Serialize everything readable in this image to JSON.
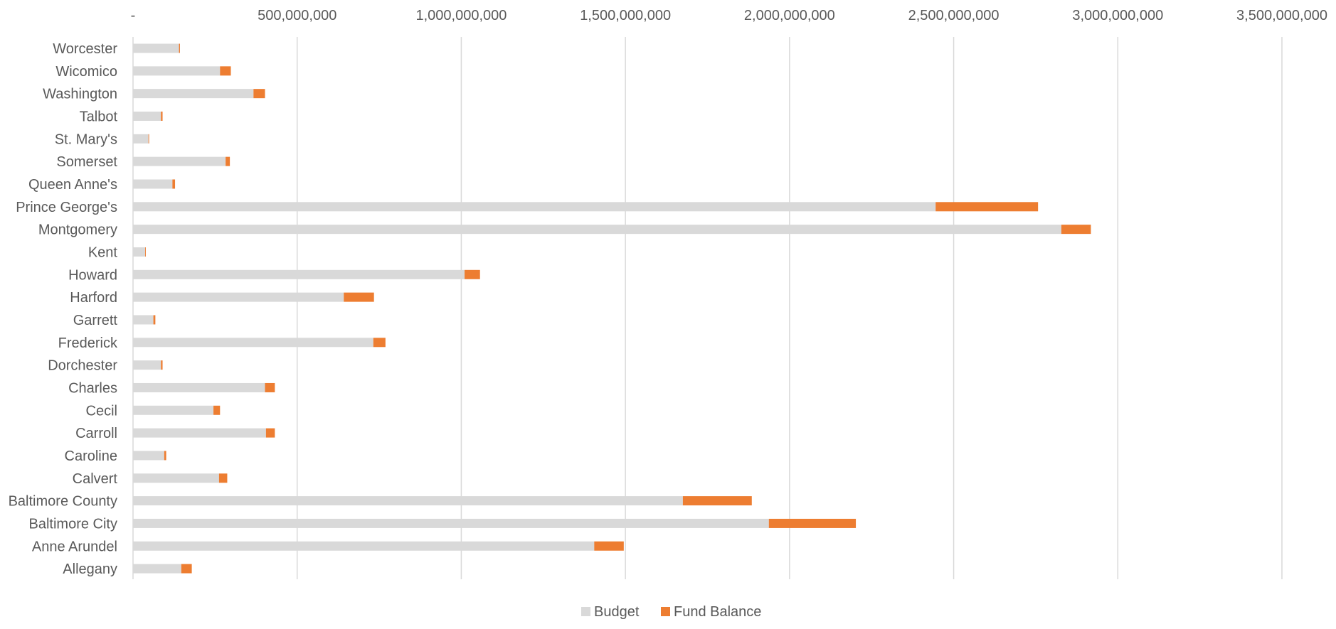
{
  "chart_data": {
    "type": "bar",
    "orientation": "horizontal",
    "stacked": true,
    "categories": [
      "Worcester",
      "Wicomico",
      "Washington",
      "Talbot",
      "St. Mary's",
      "Somerset",
      "Queen Anne's",
      "Prince George's",
      "Montgomery",
      "Kent",
      "Howard",
      "Harford",
      "Garrett",
      "Frederick",
      "Dorchester",
      "Charles",
      "Cecil",
      "Carroll",
      "Caroline",
      "Calvert",
      "Baltimore County",
      "Baltimore City",
      "Anne Arundel",
      "Allegany"
    ],
    "series": [
      {
        "name": "Budget",
        "color": "#d9d9d9",
        "values": [
          140000000,
          265000000,
          367000000,
          85000000,
          47000000,
          282000000,
          120000000,
          2445000000,
          2828000000,
          37000000,
          1010000000,
          642000000,
          62000000,
          732000000,
          85000000,
          402000000,
          245000000,
          405000000,
          95000000,
          262000000,
          1675000000,
          1937000000,
          1405000000,
          147000000
        ]
      },
      {
        "name": "Fund Balance",
        "color": "#ed7d31",
        "values": [
          3000000,
          33000000,
          35000000,
          5000000,
          2000000,
          13000000,
          8000000,
          312000000,
          90000000,
          2000000,
          47000000,
          92000000,
          6000000,
          37000000,
          5000000,
          30000000,
          20000000,
          27000000,
          6000000,
          25000000,
          210000000,
          265000000,
          90000000,
          32000000
        ]
      }
    ],
    "xlim": [
      0,
      3500000000
    ],
    "x_ticks": [
      0,
      500000000,
      1000000000,
      1500000000,
      2000000000,
      2500000000,
      3000000000,
      3500000000
    ],
    "x_tick_labels": [
      "-",
      "500,000,000",
      "1,000,000,000",
      "1,500,000,000",
      "2,000,000,000",
      "2,500,000,000",
      "3,000,000,000",
      "3,500,000,000"
    ],
    "x_axis_position": "top",
    "grid": true,
    "legend_position": "bottom",
    "title": "",
    "xlabel": "",
    "ylabel": ""
  }
}
